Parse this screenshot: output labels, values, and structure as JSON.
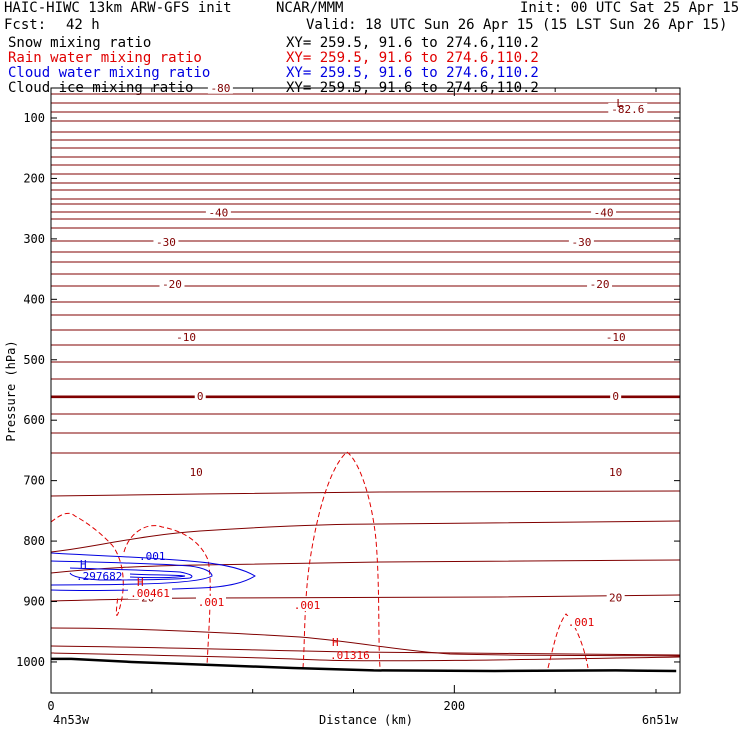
{
  "header": {
    "title_left": "HAIC-HIWC 13km ARW-GFS init",
    "org": "NCAR/MMM",
    "init": "Init: 00 UTC Sat 25 Apr 15",
    "fcst_label": "Fcst:",
    "fcst_value": "42 h",
    "valid": "Valid: 18 UTC Sun 26 Apr 15 (15 LST Sun 26 Apr 15)",
    "fields": [
      {
        "name": "Snow mixing ratio",
        "xy": "XY= 259.5, 91.6 to 274.6,110.2",
        "color": "#000000"
      },
      {
        "name": "Rain water mixing ratio",
        "xy": "XY= 259.5, 91.6 to 274.6,110.2",
        "color": "#e00000"
      },
      {
        "name": "Cloud water mixing ratio",
        "xy": "XY= 259.5, 91.6 to 274.6,110.2",
        "color": "#0000e0"
      },
      {
        "name": "Cloud ice mixing ratio",
        "xy": "XY= 259.5, 91.6 to 274.6,110.2",
        "color": "#000000"
      }
    ]
  },
  "chart_data": {
    "type": "contour",
    "xlabel": "Distance (km)",
    "ylabel": "Pressure (hPa)",
    "xlim": [
      0,
      310
    ],
    "ylim": [
      1050,
      30
    ],
    "x_ticks": [
      {
        "value": 0,
        "label": "0"
      },
      {
        "value": 200,
        "label": "200"
      }
    ],
    "x_end_labels": {
      "left": "4n53w",
      "right": "6n51w"
    },
    "y_ticks": [
      {
        "value": 100,
        "label": "100"
      },
      {
        "value": 200,
        "label": "200"
      },
      {
        "value": 300,
        "label": "300"
      },
      {
        "value": 400,
        "label": "400"
      },
      {
        "value": 500,
        "label": "500"
      },
      {
        "value": 600,
        "label": "600"
      },
      {
        "value": 700,
        "label": "700"
      },
      {
        "value": 800,
        "label": "800"
      },
      {
        "value": 900,
        "label": "900"
      },
      {
        "value": 1000,
        "label": "1000"
      }
    ],
    "colors": {
      "temperature": "#800000",
      "rain": "#e00000",
      "cloud_water": "#0000e0",
      "terrain": "#000000"
    },
    "terrain": [
      [
        0,
        995
      ],
      [
        10,
        995
      ],
      [
        40,
        1000
      ],
      [
        80,
        1005
      ],
      [
        120,
        1010
      ],
      [
        160,
        1014
      ],
      [
        220,
        1015
      ],
      [
        280,
        1014
      ],
      [
        310,
        1015
      ]
    ],
    "temperature_contours": [
      {
        "label": "-80",
        "x": 84,
        "p": 50
      },
      {
        "label": "-82.6",
        "x": 286,
        "p": 85
      },
      {
        "label": "-40",
        "x": 83,
        "p": 256
      },
      {
        "label": "-40",
        "x": 274,
        "p": 256
      },
      {
        "label": "-30",
        "x": 57,
        "p": 305
      },
      {
        "label": "-30",
        "x": 263,
        "p": 305
      },
      {
        "label": "-20",
        "x": 60,
        "p": 375
      },
      {
        "label": "-20",
        "x": 272,
        "p": 375
      },
      {
        "label": "-10",
        "x": 67,
        "p": 462
      },
      {
        "label": "-10",
        "x": 280,
        "p": 462
      },
      {
        "label": "0",
        "x": 74,
        "p": 560
      },
      {
        "label": "0",
        "x": 280,
        "p": 560
      },
      {
        "label": "10",
        "x": 72,
        "p": 686
      },
      {
        "label": "10",
        "x": 280,
        "p": 686
      },
      {
        "label": "20",
        "x": 48,
        "p": 893
      },
      {
        "label": "20",
        "x": 280,
        "p": 893
      }
    ],
    "rain_water": {
      "contour_levels": [
        ".001"
      ],
      "labels": [
        ".001",
        ".001",
        ".001",
        ".00461"
      ],
      "max": {
        "symbol": "H",
        "value": ".01316",
        "x": 140,
        "p": 990
      }
    },
    "cloud_water": {
      "contour_levels": [
        ".001"
      ],
      "labels": [
        ".001"
      ],
      "max": {
        "symbol": "H",
        "value": ".297682",
        "x": 14,
        "p": 856
      }
    },
    "min_marker": {
      "symbol": "L",
      "x": 282,
      "p": 75
    },
    "rain_max_near_cloud": {
      "symbol": "H",
      "x": 42,
      "p": 880
    }
  }
}
